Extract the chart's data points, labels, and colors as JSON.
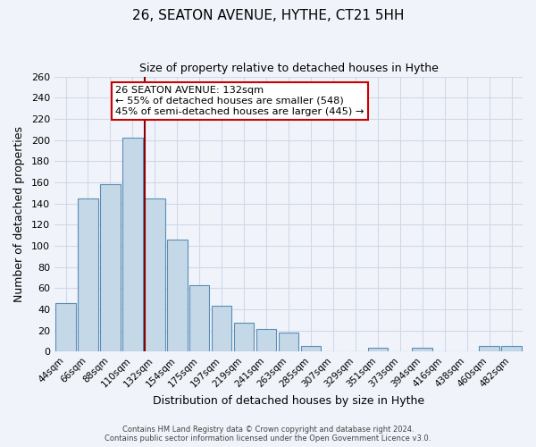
{
  "title": "26, SEATON AVENUE, HYTHE, CT21 5HH",
  "subtitle": "Size of property relative to detached houses in Hythe",
  "xlabel": "Distribution of detached houses by size in Hythe",
  "ylabel": "Number of detached properties",
  "bar_labels": [
    "44sqm",
    "66sqm",
    "88sqm",
    "110sqm",
    "132sqm",
    "154sqm",
    "175sqm",
    "197sqm",
    "219sqm",
    "241sqm",
    "263sqm",
    "285sqm",
    "307sqm",
    "329sqm",
    "351sqm",
    "373sqm",
    "394sqm",
    "416sqm",
    "438sqm",
    "460sqm",
    "482sqm"
  ],
  "bar_values": [
    46,
    145,
    158,
    202,
    145,
    106,
    63,
    43,
    27,
    21,
    18,
    5,
    0,
    0,
    4,
    0,
    4,
    0,
    0,
    5,
    5
  ],
  "bar_color": "#c5d8e8",
  "bar_edge_color": "#5a8db5",
  "grid_color": "#d0d8e8",
  "background_color": "#f0f4fa",
  "vline_index": 4,
  "vline_color": "#8b0000",
  "annotation_text": "26 SEATON AVENUE: 132sqm\n← 55% of detached houses are smaller (548)\n45% of semi-detached houses are larger (445) →",
  "annotation_box_color": "#ffffff",
  "annotation_box_edge_color": "#cc0000",
  "ylim": [
    0,
    260
  ],
  "yticks": [
    0,
    20,
    40,
    60,
    80,
    100,
    120,
    140,
    160,
    180,
    200,
    220,
    240,
    260
  ],
  "footer_line1": "Contains HM Land Registry data © Crown copyright and database right 2024.",
  "footer_line2": "Contains public sector information licensed under the Open Government Licence v3.0."
}
